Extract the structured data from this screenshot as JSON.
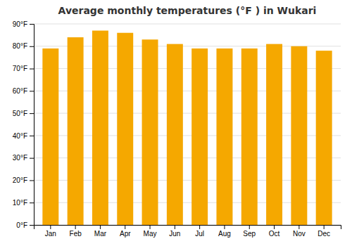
{
  "chart_data": {
    "type": "bar",
    "title": "Average monthly temperatures (°F ) in Wukari",
    "categories": [
      "Jan",
      "Feb",
      "Mar",
      "Apr",
      "May",
      "Jun",
      "Jul",
      "Aug",
      "Sep",
      "Oct",
      "Nov",
      "Dec"
    ],
    "values": [
      79,
      84,
      87,
      86,
      83,
      81,
      79,
      79,
      79,
      81,
      80,
      78
    ],
    "color": "#F5A800",
    "ylim": [
      0,
      90
    ],
    "yticks": [
      {
        "value": 0,
        "label": "0°F"
      },
      {
        "value": 10,
        "label": "10°F"
      },
      {
        "value": 20,
        "label": "20°F"
      },
      {
        "value": 30,
        "label": "30°F"
      },
      {
        "value": 40,
        "label": "40°F"
      },
      {
        "value": 50,
        "label": "50°F"
      },
      {
        "value": 60,
        "label": "60°F"
      },
      {
        "value": 70,
        "label": "70°F"
      },
      {
        "value": 80,
        "label": "80°F"
      },
      {
        "value": 90,
        "label": "90°F"
      }
    ],
    "grid": true
  }
}
